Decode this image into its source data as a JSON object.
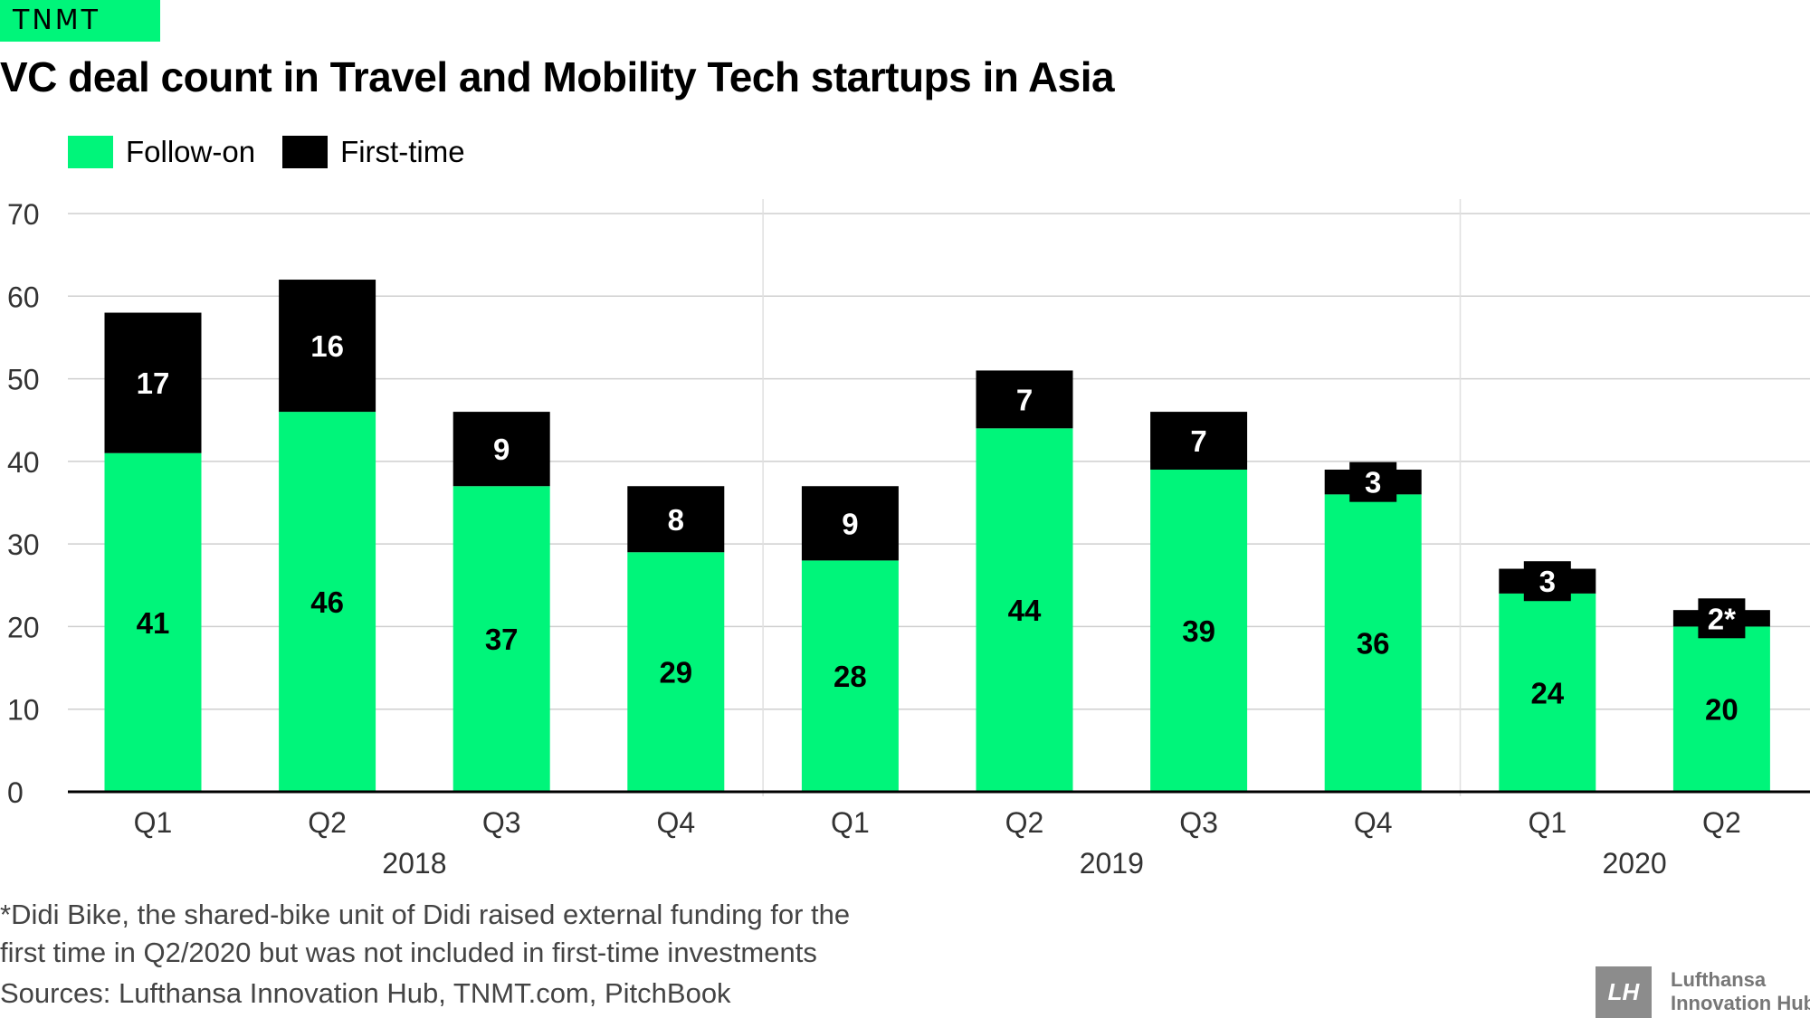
{
  "brand": "TNMT",
  "title": "VC deal count in Travel and Mobility Tech startups in Asia",
  "footnote_line1": "*Didi Bike, the shared-bike unit of Didi raised external funding for the",
  "footnote_line2": "first time in Q2/2020 but was not included in first-time investments",
  "source": "Sources: Lufthansa Innovation Hub, TNMT.com, PitchBook",
  "logo": {
    "mark": "LH",
    "line1": "Lufthansa",
    "line2": "Innovation Hub"
  },
  "colors": {
    "follow_on": "#00f57a",
    "first_time": "#000000"
  },
  "chart_data": {
    "type": "bar",
    "stacked": true,
    "categories": [
      "Q1",
      "Q2",
      "Q3",
      "Q4",
      "Q1",
      "Q2",
      "Q3",
      "Q4",
      "Q1",
      "Q2"
    ],
    "groups": [
      {
        "label": "2018",
        "count": 4
      },
      {
        "label": "2019",
        "count": 4
      },
      {
        "label": "2020",
        "count": 2
      }
    ],
    "series": [
      {
        "name": "Follow-on",
        "color": "#00f57a",
        "values": [
          41,
          46,
          37,
          29,
          28,
          44,
          39,
          36,
          24,
          20
        ],
        "labels": [
          "41",
          "46",
          "37",
          "29",
          "28",
          "44",
          "39",
          "36",
          "24",
          "20"
        ]
      },
      {
        "name": "First-time",
        "color": "#000000",
        "values": [
          17,
          16,
          9,
          8,
          9,
          7,
          7,
          3,
          3,
          2
        ],
        "labels": [
          "17",
          "16",
          "9",
          "8",
          "9",
          "7",
          "7",
          "3",
          "3",
          "2*"
        ]
      }
    ],
    "yticks": [
      0,
      10,
      20,
      30,
      40,
      50,
      60,
      70
    ],
    "ylim": [
      0,
      70
    ],
    "grid": true,
    "legend": "top-left"
  }
}
